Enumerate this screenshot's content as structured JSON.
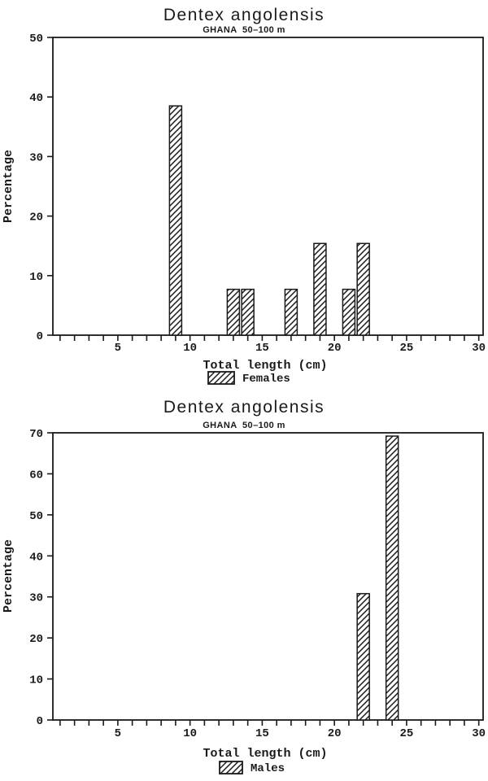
{
  "page": {
    "background": "#ffffff",
    "ink": "#1a1a1a"
  },
  "chart_data": [
    {
      "type": "bar",
      "title": "Dentex angolensis",
      "subtitle": "GHANA  50–100 m",
      "xlabel": "Total length (cm)",
      "ylabel": "Percentage",
      "legend_label": "Females",
      "legend_position": "below-x-axis-center",
      "bar_style": "diagonal-hatch",
      "grid": false,
      "xlim": [
        0.5,
        30.3
      ],
      "ylim": [
        0,
        50
      ],
      "y_ticks": [
        0,
        10,
        20,
        30,
        40,
        50
      ],
      "x_major_ticks": [
        5,
        10,
        15,
        20,
        25,
        30
      ],
      "x_minor_tick_range": [
        1,
        30
      ],
      "x_minor_tick_step": 1,
      "x": [
        9,
        13,
        14,
        17,
        19,
        21,
        22
      ],
      "values": [
        38.5,
        7.7,
        7.7,
        7.7,
        15.4,
        7.7,
        15.4
      ]
    },
    {
      "type": "bar",
      "title": "Dentex angolensis",
      "subtitle": "GHANA  50–100 m",
      "xlabel": "Total length (cm)",
      "ylabel": "Percentage",
      "legend_label": "Males",
      "legend_position": "below-x-axis-center",
      "bar_style": "diagonal-hatch",
      "grid": false,
      "xlim": [
        0.5,
        30.3
      ],
      "ylim": [
        0,
        70
      ],
      "y_ticks": [
        0,
        10,
        20,
        30,
        40,
        50,
        60,
        70
      ],
      "x_major_ticks": [
        5,
        10,
        15,
        20,
        25,
        30
      ],
      "x_minor_tick_range": [
        1,
        30
      ],
      "x_minor_tick_step": 1,
      "x": [
        22,
        24
      ],
      "values": [
        30.8,
        69.2
      ]
    }
  ]
}
